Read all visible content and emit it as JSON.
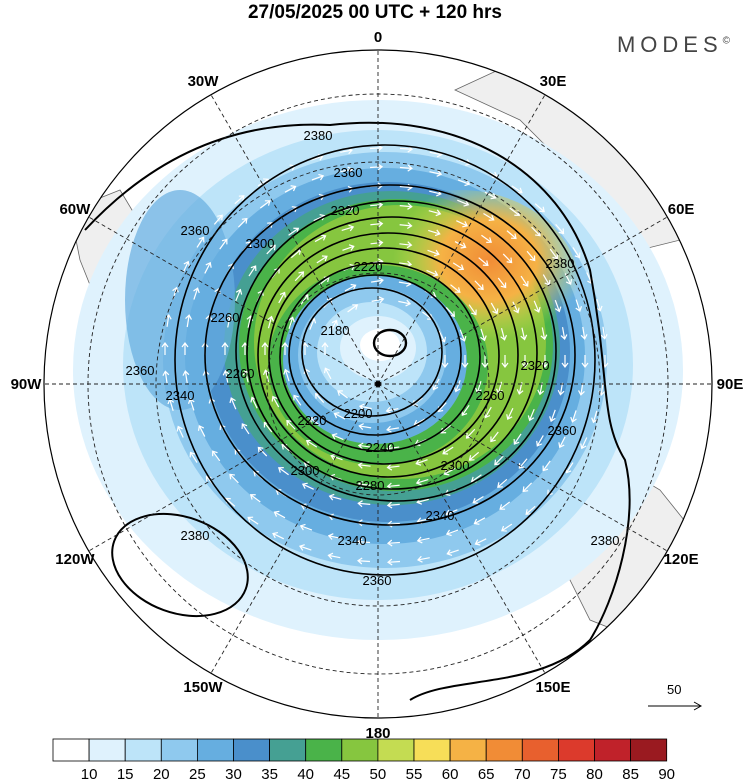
{
  "title": "27/05/2025  00 UTC  + 120 hrs",
  "brand": "MODES",
  "brand_mark": "©",
  "longitude_labels": [
    {
      "text": "0",
      "angle": 0
    },
    {
      "text": "30E",
      "angle": 30
    },
    {
      "text": "60E",
      "angle": 60
    },
    {
      "text": "90E",
      "angle": 90
    },
    {
      "text": "120E",
      "angle": 120
    },
    {
      "text": "150E",
      "angle": 150
    },
    {
      "text": "180",
      "angle": 180
    },
    {
      "text": "150W",
      "angle": 210
    },
    {
      "text": "120W",
      "angle": 240
    },
    {
      "text": "90W",
      "angle": 270
    },
    {
      "text": "60W",
      "angle": 300
    },
    {
      "text": "30W",
      "angle": 330
    }
  ],
  "contour_labels": [
    "2380",
    "2360",
    "2320",
    "2300",
    "2360",
    "2220",
    "2260",
    "2180",
    "2260",
    "2360",
    "2340",
    "2200",
    "2220",
    "2240",
    "2320",
    "2260",
    "2280",
    "2300",
    "2300",
    "2360",
    "2340",
    "2340",
    "2380",
    "2360",
    "2380",
    "2380"
  ],
  "reference_vector": "50",
  "colorbar": {
    "levels": [
      "10",
      "15",
      "20",
      "25",
      "30",
      "35",
      "40",
      "45",
      "50",
      "55",
      "60",
      "65",
      "70",
      "75",
      "80",
      "85",
      "90"
    ],
    "colors": [
      "#ffffff",
      "#dff2fd",
      "#bde4f9",
      "#8fc9ee",
      "#66aee0",
      "#4a8fcb",
      "#45a093",
      "#4ab349",
      "#86c63f",
      "#c4dc52",
      "#f7de58",
      "#f5b245",
      "#f18c36",
      "#e8602e",
      "#dc3a2c",
      "#c0222a",
      "#9a1a20"
    ]
  }
}
